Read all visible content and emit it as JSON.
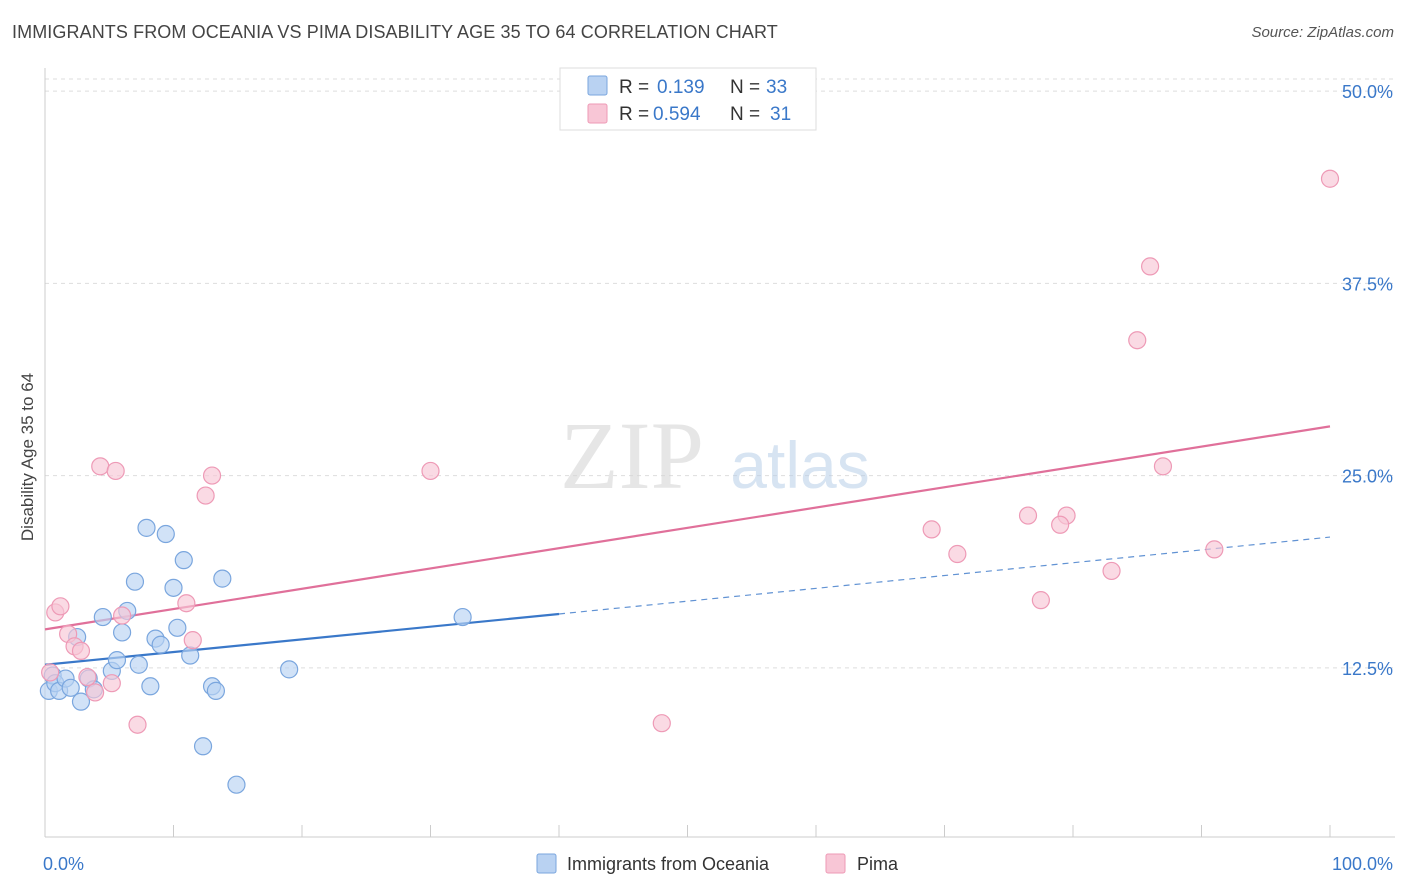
{
  "title": "IMMIGRANTS FROM OCEANIA VS PIMA DISABILITY AGE 35 TO 64 CORRELATION CHART",
  "source": "Source: ZipAtlas.com",
  "watermark": {
    "zip": "ZIP",
    "atlas": "atlas"
  },
  "colors": {
    "blue": "#3a78c9",
    "blue_fill": "#b9d2f2",
    "blue_stroke": "#7aa6de",
    "pink": "#e0709a",
    "pink_fill": "#f8c6d6",
    "pink_stroke": "#ee9ab6",
    "tick_label": "#3a78c9",
    "grid": "#dddddd"
  },
  "legend_top": {
    "rows": [
      {
        "r_label": "R =",
        "r_value": "0.139",
        "n_label": "N =",
        "n_value": "33",
        "series": "blue"
      },
      {
        "r_label": "R =",
        "r_value": "0.594",
        "n_label": "N =",
        "n_value": "31",
        "series": "pink"
      }
    ]
  },
  "chart_data": {
    "type": "scatter",
    "title": "IMMIGRANTS FROM OCEANIA VS PIMA DISABILITY AGE 35 TO 64 CORRELATION CHART",
    "xlabel": "",
    "ylabel": "Disability Age 35 to 64",
    "xlim": [
      0,
      100
    ],
    "ylim": [
      1.5,
      51.5
    ],
    "x_tick_labels": [
      {
        "value": 0,
        "label": "0.0%"
      },
      {
        "value": 100,
        "label": "100.0%"
      }
    ],
    "y_tick_labels": [
      {
        "value": 12.5,
        "label": "12.5%"
      },
      {
        "value": 25.0,
        "label": "25.0%"
      },
      {
        "value": 37.5,
        "label": "37.5%"
      },
      {
        "value": 50.0,
        "label": "50.0%"
      }
    ],
    "grid": true,
    "legend": "bottom-center",
    "series": [
      {
        "name": "Immigrants from Oceania",
        "color": "blue",
        "points": [
          [
            0.3,
            11.0
          ],
          [
            0.6,
            12.0
          ],
          [
            0.8,
            11.5
          ],
          [
            1.1,
            11.0
          ],
          [
            1.6,
            11.8
          ],
          [
            2.0,
            11.2
          ],
          [
            2.5,
            14.5
          ],
          [
            2.8,
            10.3
          ],
          [
            3.4,
            11.8
          ],
          [
            3.8,
            11.1
          ],
          [
            4.5,
            15.8
          ],
          [
            5.2,
            12.3
          ],
          [
            5.6,
            13.0
          ],
          [
            6.0,
            14.8
          ],
          [
            6.4,
            16.2
          ],
          [
            7.0,
            18.1
          ],
          [
            7.3,
            12.7
          ],
          [
            7.9,
            21.6
          ],
          [
            8.2,
            11.3
          ],
          [
            8.6,
            14.4
          ],
          [
            9.0,
            14.0
          ],
          [
            9.4,
            21.2
          ],
          [
            10.0,
            17.7
          ],
          [
            10.3,
            15.1
          ],
          [
            10.8,
            19.5
          ],
          [
            11.3,
            13.3
          ],
          [
            12.3,
            7.4
          ],
          [
            13.0,
            11.3
          ],
          [
            13.3,
            11.0
          ],
          [
            13.8,
            18.3
          ],
          [
            14.9,
            4.9
          ],
          [
            19.0,
            12.4
          ],
          [
            32.5,
            15.8
          ]
        ]
      },
      {
        "name": "Pima",
        "color": "pink",
        "points": [
          [
            0.4,
            12.2
          ],
          [
            0.8,
            16.1
          ],
          [
            1.2,
            16.5
          ],
          [
            1.8,
            14.7
          ],
          [
            2.3,
            13.9
          ],
          [
            2.8,
            13.6
          ],
          [
            3.3,
            11.9
          ],
          [
            3.9,
            10.9
          ],
          [
            4.3,
            25.6
          ],
          [
            5.2,
            11.5
          ],
          [
            5.5,
            25.3
          ],
          [
            6.0,
            15.9
          ],
          [
            7.2,
            8.8
          ],
          [
            11.0,
            16.7
          ],
          [
            11.5,
            14.3
          ],
          [
            12.5,
            23.7
          ],
          [
            13.0,
            25.0
          ],
          [
            30.0,
            25.3
          ],
          [
            48.0,
            8.9
          ],
          [
            69.0,
            21.5
          ],
          [
            71.0,
            19.9
          ],
          [
            76.5,
            22.4
          ],
          [
            77.5,
            16.9
          ],
          [
            79.5,
            22.4
          ],
          [
            79.0,
            21.8
          ],
          [
            83.0,
            18.8
          ],
          [
            85.0,
            33.8
          ],
          [
            86.0,
            38.6
          ],
          [
            87.0,
            25.6
          ],
          [
            91.0,
            20.2
          ],
          [
            100.0,
            44.3
          ]
        ]
      }
    ],
    "trend_lines": [
      {
        "series": "Immigrants from Oceania",
        "x": [
          0,
          40
        ],
        "y": [
          12.7,
          16.0
        ],
        "dashed_extension_to": [
          100,
          21.0
        ]
      },
      {
        "series": "Pima",
        "x": [
          0,
          100
        ],
        "y": [
          15.0,
          28.2
        ]
      }
    ]
  },
  "legend_bottom": {
    "items": [
      {
        "label": "Immigrants from Oceania",
        "series": "blue"
      },
      {
        "label": "Pima",
        "series": "pink"
      }
    ]
  }
}
